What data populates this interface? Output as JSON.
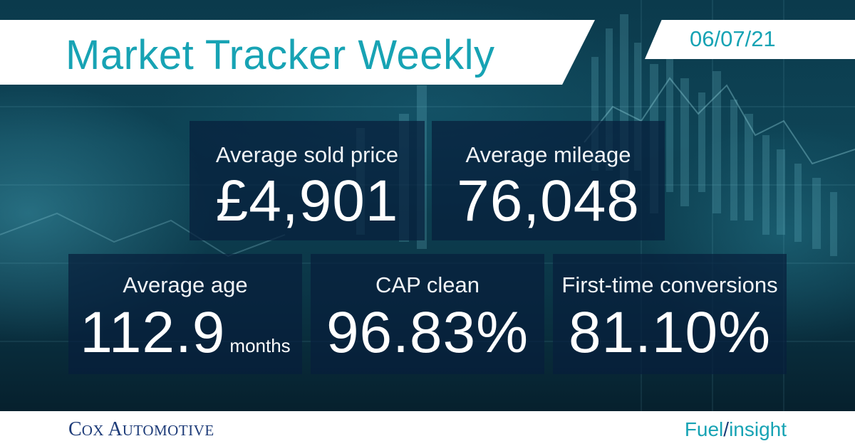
{
  "header": {
    "title": "Market Tracker Weekly",
    "date": "06/07/21"
  },
  "stats": [
    {
      "label": "Average sold price",
      "value": "£4,901",
      "unit": ""
    },
    {
      "label": "Average mileage",
      "value": "76,048",
      "unit": ""
    },
    {
      "label": "Average age",
      "value": "112.9",
      "unit": "months"
    },
    {
      "label": "CAP clean",
      "value": "96.83%",
      "unit": ""
    },
    {
      "label": "First-time conversions",
      "value": "81.10%",
      "unit": ""
    }
  ],
  "footer": {
    "brand_left": {
      "initial_1": "C",
      "rest_1": "OX",
      "initial_2": "A",
      "rest_2": "UTOMOTIVE"
    },
    "brand_right": {
      "part1": "Fuel",
      "slash": "/",
      "part2": "insight"
    }
  },
  "colors": {
    "accent": "#17a3b4",
    "brand_navy": "#1d3b78",
    "panel": "#071e3c",
    "background": "#0e4456"
  },
  "decor": {
    "background_graphic": "financial-candlestick-chart-image"
  }
}
